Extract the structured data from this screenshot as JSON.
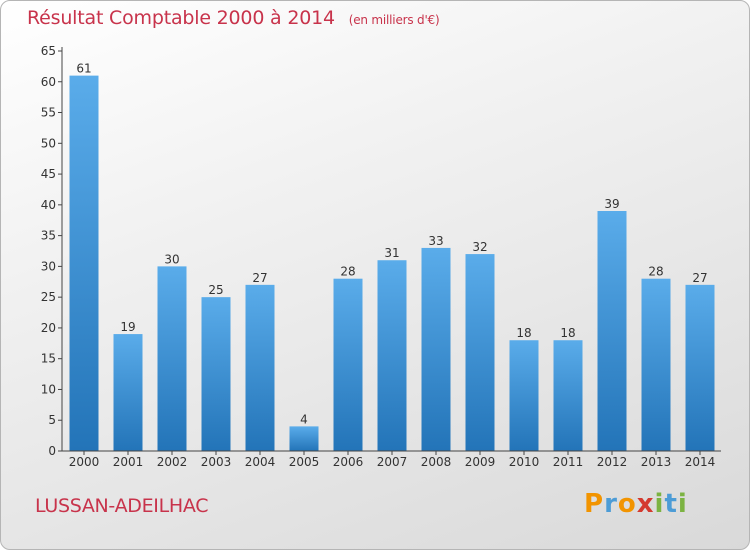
{
  "chart_data": {
    "type": "bar",
    "title": "Résultat Comptable 2000 à 2014",
    "subtitle": "(en milliers d'€)",
    "categories": [
      "2000",
      "2001",
      "2002",
      "2003",
      "2004",
      "2005",
      "2006",
      "2007",
      "2008",
      "2009",
      "2010",
      "2011",
      "2012",
      "2013",
      "2014"
    ],
    "values": [
      61,
      19,
      30,
      25,
      27,
      4,
      28,
      31,
      33,
      32,
      18,
      18,
      39,
      28,
      27
    ],
    "ylim": [
      0,
      65
    ],
    "yticks": [
      0,
      5,
      10,
      15,
      20,
      25,
      30,
      35,
      40,
      45,
      50,
      55,
      60,
      65
    ],
    "xlabel": "",
    "ylabel": "",
    "grid": false,
    "bar_color": "#3d8fd8"
  },
  "footer": {
    "commune": "LUSSAN-ADEILHAC",
    "brand_letters": [
      "P",
      "r",
      "o",
      "x",
      "i",
      "t",
      "i"
    ],
    "brand_colors": [
      "#f29400",
      "#4c9cd6",
      "#f29400",
      "#d43a2f",
      "#7cb342",
      "#4c9cd6",
      "#7cb342"
    ]
  },
  "colors": {
    "title": "#c8334b",
    "axis": "#444444"
  }
}
